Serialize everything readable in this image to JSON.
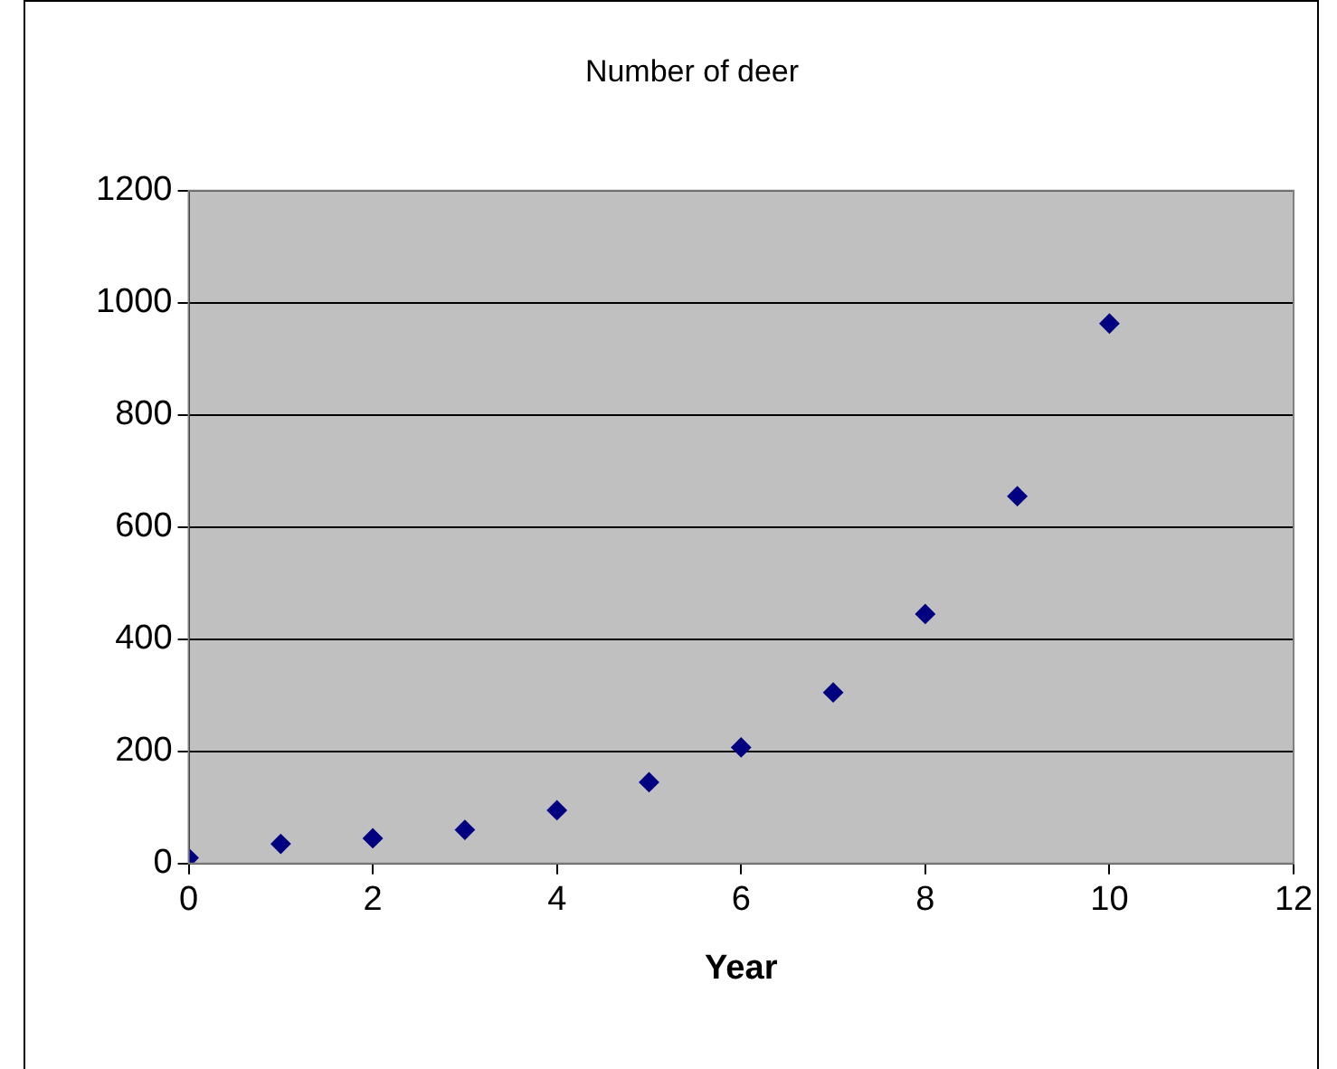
{
  "chart_data": {
    "type": "scatter",
    "title": "Number of deer",
    "xlabel": "Year",
    "x": [
      0,
      1,
      2,
      3,
      4,
      5,
      6,
      7,
      8,
      9,
      10
    ],
    "series": [
      {
        "color": "#000080",
        "values": [
          10,
          35,
          45,
          60,
          95,
          145,
          207,
          305,
          445,
          655,
          963
        ]
      }
    ],
    "xlim": [
      0,
      12
    ],
    "xticks": [
      0,
      2,
      4,
      6,
      8,
      10,
      12
    ],
    "ylim": [
      0,
      1200
    ],
    "yticks": [
      0,
      200,
      400,
      600,
      800,
      1000,
      1200
    ],
    "grid": "y",
    "legend": false,
    "marker": "diamond"
  }
}
